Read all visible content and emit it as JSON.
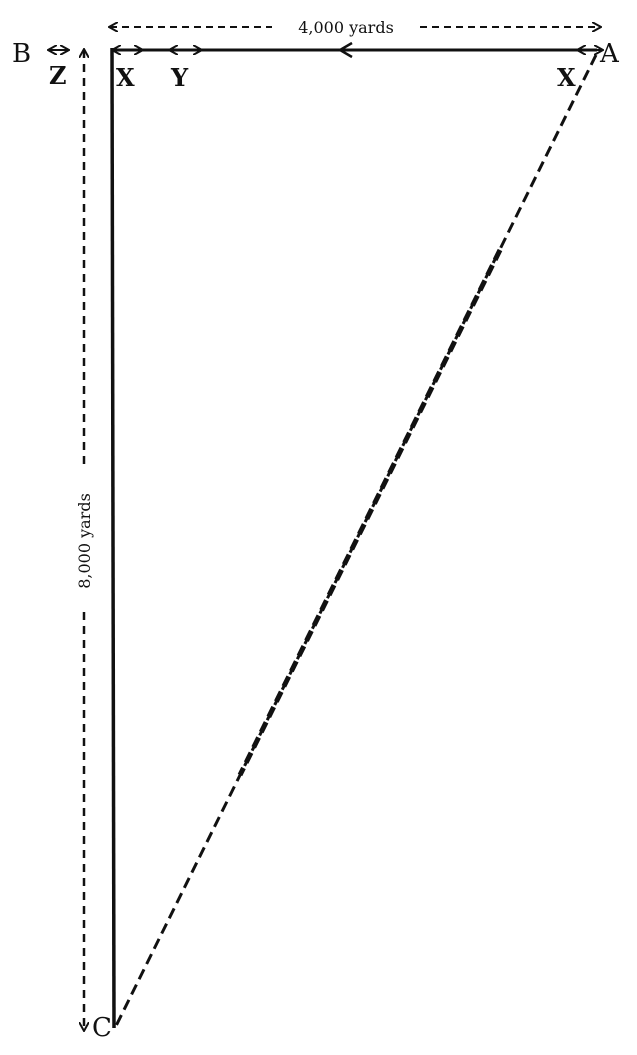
{
  "points": {
    "a": "A",
    "b": "B",
    "c": "C"
  },
  "segments": {
    "x_left": "X",
    "y": "Y",
    "x_right": "X",
    "z": "Z"
  },
  "dimensions": {
    "horizontal": "4,000 yards",
    "vertical": "8,000 yards"
  },
  "colors": {
    "ink": "#111111",
    "background": "#ffffff"
  }
}
